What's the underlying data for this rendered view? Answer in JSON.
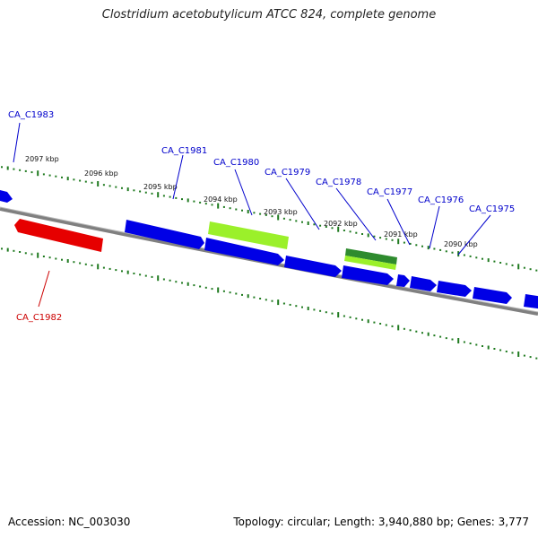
{
  "title": "Clostridium acetobutylicum ATCC 824, complete genome",
  "footer": {
    "accession": "Accession: NC_003030",
    "summary": "Topology: circular; Length: 3,940,880 bp; Genes: 3,777"
  },
  "colors": {
    "background": "#ffffff",
    "backbone": "#808080",
    "tick": "#1f7a1f",
    "forward_gene": "#0000e6",
    "reverse_gene": "#e60000",
    "rna_light": "#9bf02a",
    "rna_dark": "#2e8b2e",
    "label_forward": "#0000cc",
    "label_reverse": "#cc0000"
  },
  "kbp_ticks": [
    "2097 kbp",
    "2096 kbp",
    "2095 kbp",
    "2094 kbp",
    "2093 kbp",
    "2092 kbp",
    "2091 kbp",
    "2090 kbp"
  ],
  "gene_labels": [
    {
      "text": "CA_C1983",
      "strand": "forward"
    },
    {
      "text": "CA_C1981",
      "strand": "forward"
    },
    {
      "text": "CA_C1980",
      "strand": "forward"
    },
    {
      "text": "CA_C1979",
      "strand": "forward"
    },
    {
      "text": "CA_C1978",
      "strand": "forward"
    },
    {
      "text": "CA_C1977",
      "strand": "forward"
    },
    {
      "text": "CA_C1976",
      "strand": "forward"
    },
    {
      "text": "CA_C1975",
      "strand": "forward"
    },
    {
      "text": "CA_C1982",
      "strand": "reverse"
    }
  ]
}
